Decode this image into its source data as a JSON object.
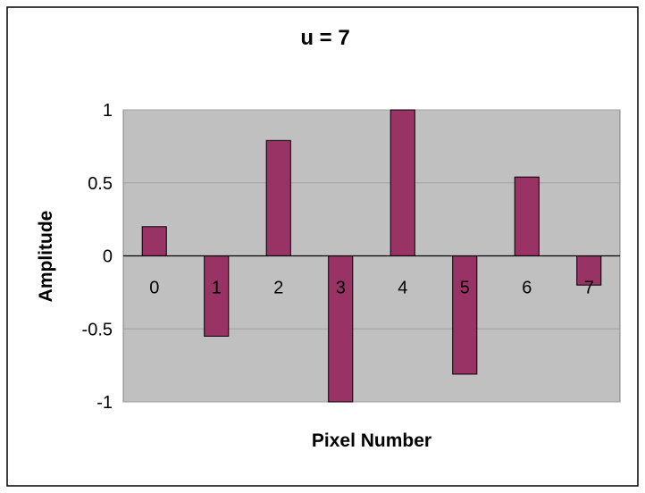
{
  "chart_data": {
    "type": "bar",
    "title": "u = 7",
    "xlabel": "Pixel Number",
    "ylabel": "Amplitude",
    "categories": [
      "0",
      "1",
      "2",
      "3",
      "4",
      "5",
      "6",
      "7"
    ],
    "values": [
      0.2,
      -0.55,
      0.79,
      -1.0,
      1.0,
      -0.81,
      0.54,
      -0.2
    ],
    "ylim": [
      -1,
      1
    ],
    "y_ticks": [
      1,
      0.5,
      0,
      -0.5,
      -1
    ],
    "y_tick_labels": [
      "1",
      "0.5",
      "0",
      "-0.5",
      "-1"
    ],
    "grid": true,
    "legend": "none",
    "bar_color": "#993366",
    "plot_background": "#c0c0c0",
    "gridline_color": "#a0a0a0"
  }
}
